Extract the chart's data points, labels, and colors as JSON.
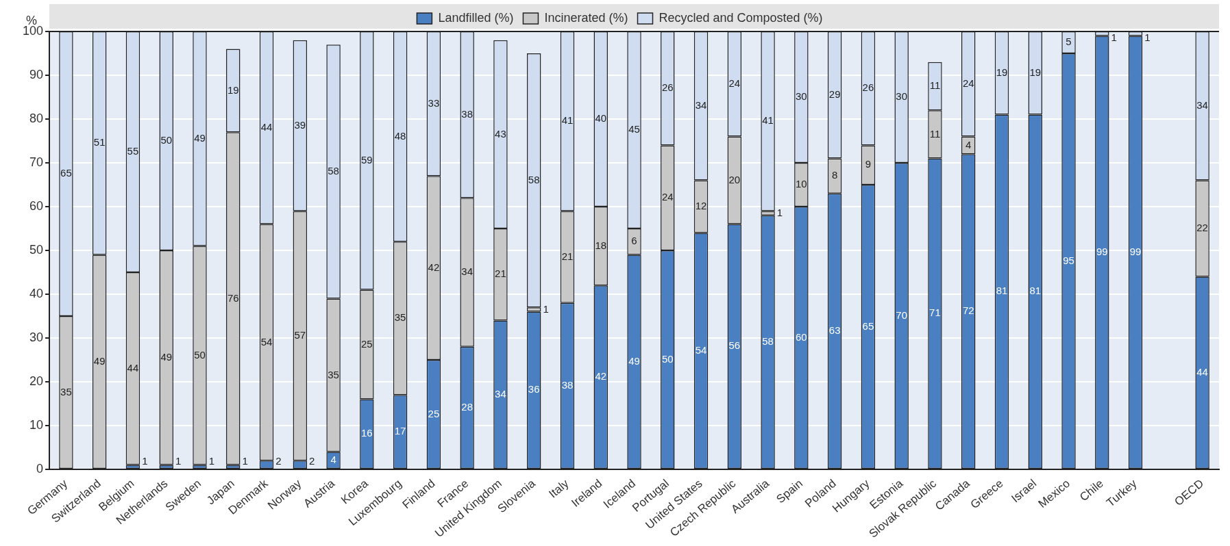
{
  "chart_data": {
    "type": "bar",
    "stacked": true,
    "ylabel": "%",
    "legend": "top",
    "grid": "y",
    "data_labels": true,
    "categories": [
      "Germany",
      "Switzerland",
      "Belgium",
      "Netherlands",
      "Sweden",
      "Japan",
      "Denmark",
      "Norway",
      "Austria",
      "Korea",
      "Luxembourg",
      "Finland",
      "France",
      "United Kingdom",
      "Slovenia",
      "Italy",
      "Ireland",
      "Iceland",
      "Portugal",
      "United States",
      "Czech Republic",
      "Australia",
      "Spain",
      "Poland",
      "Hungary",
      "Estonia",
      "Slovak Republic",
      "Canada",
      "Greece",
      "Israel",
      "Mexico",
      "Chile",
      "Turkey",
      null,
      "OECD"
    ],
    "ylim": [
      0,
      100
    ],
    "yticks": [
      0,
      10,
      20,
      30,
      40,
      50,
      60,
      70,
      80,
      90,
      100
    ],
    "series": [
      {
        "name": "Landfilled (%)",
        "color": "#4a7fc1",
        "values": [
          null,
          null,
          1,
          1,
          1,
          1,
          2,
          2,
          4,
          16,
          17,
          25,
          28,
          34,
          36,
          38,
          42,
          49,
          50,
          54,
          56,
          58,
          60,
          63,
          65,
          70,
          71,
          72,
          81,
          81,
          95,
          99,
          99,
          null,
          44
        ]
      },
      {
        "name": "Incinerated (%)",
        "color": "#c8c8c8",
        "values": [
          35,
          49,
          44,
          49,
          50,
          76,
          54,
          57,
          35,
          25,
          35,
          42,
          34,
          21,
          1,
          21,
          18,
          6,
          24,
          12,
          20,
          1,
          10,
          8,
          9,
          null,
          11,
          4,
          null,
          null,
          null,
          null,
          null,
          null,
          22
        ]
      },
      {
        "name": "Recycled and Composted (%)",
        "color": "#d0ddf1",
        "values": [
          65,
          51,
          55,
          50,
          49,
          19,
          44,
          39,
          58,
          59,
          48,
          33,
          38,
          43,
          58,
          41,
          40,
          45,
          26,
          34,
          24,
          41,
          30,
          29,
          26,
          30,
          11,
          24,
          19,
          19,
          5,
          1,
          1,
          null,
          34
        ]
      }
    ]
  }
}
